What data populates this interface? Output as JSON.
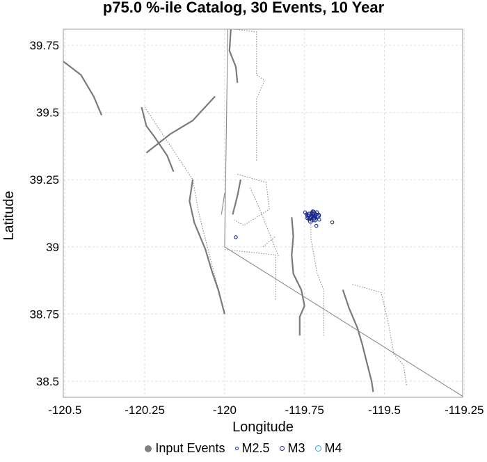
{
  "chart_data": {
    "type": "scatter",
    "title": "p75.0 %-ile Catalog, 30 Events, 10 Year",
    "xlabel": "Longitude",
    "ylabel": "Latitude",
    "xlim": [
      -120.505,
      -119.255
    ],
    "ylim": [
      38.44,
      39.81
    ],
    "xticks": [
      -120.5,
      -120.25,
      -120,
      -119.75,
      -119.5,
      -119.25
    ],
    "yticks": [
      38.5,
      38.75,
      39,
      39.25,
      39.5,
      39.75
    ],
    "xtick_labels": [
      "-120.5",
      "-120.25",
      "-120",
      "-119.75",
      "-119.5",
      "-119.25"
    ],
    "ytick_labels": [
      "38.5",
      "38.75",
      "39",
      "39.25",
      "39.5",
      "39.75"
    ],
    "grid": true,
    "legend_position": "bottom",
    "legend": [
      {
        "label": "Input Events",
        "marker": "filled-circle",
        "color": "#808080"
      },
      {
        "label": "M2.5",
        "marker": "ring",
        "color": "#1a2a8f",
        "size": 4
      },
      {
        "label": "M3",
        "marker": "ring",
        "color": "#1a2a8f",
        "size": 6
      },
      {
        "label": "M4",
        "marker": "ring",
        "color": "#33a6d6",
        "size": 9
      }
    ],
    "fault_traces": [
      {
        "style": "solid-thick",
        "points": [
          [
            -120.505,
            39.69
          ],
          [
            -120.45,
            39.64
          ],
          [
            -120.41,
            39.56
          ],
          [
            -120.385,
            39.49
          ]
        ]
      },
      {
        "style": "solid-thick",
        "points": [
          [
            -119.98,
            39.82
          ],
          [
            -119.985,
            39.73
          ],
          [
            -119.965,
            39.67
          ],
          [
            -119.96,
            39.61
          ]
        ]
      },
      {
        "style": "solid-thick",
        "points": [
          [
            -120.245,
            39.35
          ],
          [
            -120.17,
            39.42
          ],
          [
            -120.1,
            39.47
          ],
          [
            -120.03,
            39.56
          ]
        ]
      },
      {
        "style": "solid-thick",
        "points": [
          [
            -120.26,
            39.52
          ],
          [
            -120.245,
            39.45
          ],
          [
            -120.22,
            39.41
          ],
          [
            -120.18,
            39.34
          ],
          [
            -120.16,
            39.28
          ]
        ]
      },
      {
        "style": "solid-thick",
        "points": [
          [
            -120.1,
            39.25
          ],
          [
            -120.11,
            39.17
          ],
          [
            -120.095,
            39.09
          ],
          [
            -120.06,
            38.99
          ],
          [
            -120.04,
            38.91
          ],
          [
            -120.02,
            38.84
          ],
          [
            -120.0,
            38.75
          ]
        ]
      },
      {
        "style": "solid-thick",
        "points": [
          [
            -119.95,
            39.25
          ],
          [
            -119.96,
            39.19
          ],
          [
            -119.975,
            39.12
          ]
        ]
      },
      {
        "style": "solid-thick",
        "points": [
          [
            -119.79,
            39.11
          ],
          [
            -119.785,
            39.04
          ],
          [
            -119.79,
            38.97
          ],
          [
            -119.785,
            38.9
          ],
          [
            -119.76,
            38.84
          ],
          [
            -119.75,
            38.78
          ],
          [
            -119.765,
            38.74
          ],
          [
            -119.765,
            38.67
          ]
        ]
      },
      {
        "style": "solid-thick",
        "points": [
          [
            -119.63,
            38.84
          ],
          [
            -119.61,
            38.77
          ],
          [
            -119.585,
            38.7
          ],
          [
            -119.57,
            38.64
          ],
          [
            -119.555,
            38.57
          ],
          [
            -119.54,
            38.5
          ],
          [
            -119.535,
            38.46
          ]
        ]
      },
      {
        "style": "solid-thin",
        "points": [
          [
            -119.99,
            39.81
          ],
          [
            -120.0,
            39.0
          ],
          [
            -119.25,
            38.44
          ]
        ]
      },
      {
        "style": "solid-thin",
        "points": [
          [
            -120.0,
            39.2
          ],
          [
            -120.01,
            39.12
          ]
        ]
      }
    ],
    "fault_zones": [
      {
        "points": [
          [
            -119.97,
            39.81
          ],
          [
            -119.9,
            39.8
          ],
          [
            -119.9,
            39.64
          ],
          [
            -119.875,
            39.62
          ],
          [
            -119.9,
            39.55
          ],
          [
            -119.9,
            39.32
          ]
        ]
      },
      {
        "points": [
          [
            -120.25,
            39.52
          ],
          [
            -120.1,
            39.25
          ],
          [
            -120.08,
            39.12
          ],
          [
            -120.0,
            38.75
          ]
        ]
      },
      {
        "points": [
          [
            -119.96,
            39.27
          ],
          [
            -119.87,
            39.24
          ],
          [
            -119.86,
            39.14
          ],
          [
            -119.94,
            39.08
          ],
          [
            -119.97,
            39.1
          ]
        ]
      },
      {
        "points": [
          [
            -119.92,
            39.22
          ],
          [
            -119.89,
            39.14
          ],
          [
            -119.83,
            38.96
          ]
        ]
      },
      {
        "points": [
          [
            -119.73,
            39.12
          ],
          [
            -119.73,
            39.03
          ],
          [
            -119.71,
            38.9
          ],
          [
            -119.69,
            38.84
          ],
          [
            -119.69,
            38.67
          ]
        ]
      },
      {
        "points": [
          [
            -119.6,
            38.86
          ],
          [
            -119.51,
            38.83
          ],
          [
            -119.49,
            38.73
          ],
          [
            -119.47,
            38.6
          ],
          [
            -119.44,
            38.56
          ],
          [
            -119.43,
            38.48
          ]
        ]
      },
      {
        "points": [
          [
            -120.0,
            38.99
          ],
          [
            -119.84,
            38.97
          ],
          [
            -119.84,
            38.8
          ]
        ]
      },
      {
        "points": [
          [
            -119.88,
            39.0
          ],
          [
            -119.84,
            39.04
          ]
        ]
      }
    ],
    "series": [
      {
        "name": "M2.5",
        "points": [
          [
            -119.743,
            39.121
          ],
          [
            -119.738,
            39.116
          ],
          [
            -119.731,
            39.112
          ],
          [
            -119.728,
            39.126
          ],
          [
            -119.722,
            39.119
          ],
          [
            -119.719,
            39.108
          ],
          [
            -119.714,
            39.121
          ],
          [
            -119.741,
            39.107
          ],
          [
            -119.735,
            39.102
          ],
          [
            -119.725,
            39.113
          ],
          [
            -119.728,
            39.101
          ],
          [
            -119.716,
            39.111
          ],
          [
            -119.711,
            39.129
          ],
          [
            -119.705,
            39.119
          ],
          [
            -119.713,
            39.078
          ],
          [
            -119.663,
            39.091
          ],
          [
            -119.965,
            39.036
          ],
          [
            -119.748,
            39.128
          ],
          [
            -119.704,
            39.101
          ],
          [
            -119.724,
            39.132
          ]
        ]
      },
      {
        "name": "M3",
        "points": [
          [
            -119.732,
            39.109
          ],
          [
            -119.724,
            39.124
          ],
          [
            -119.739,
            39.115
          ],
          [
            -119.718,
            39.101
          ],
          [
            -119.711,
            39.114
          ],
          [
            -119.731,
            39.096
          ],
          [
            -119.722,
            39.128
          ],
          [
            -119.707,
            39.116
          ],
          [
            -119.735,
            39.121
          ],
          [
            -119.721,
            39.106
          ]
        ]
      }
    ]
  }
}
